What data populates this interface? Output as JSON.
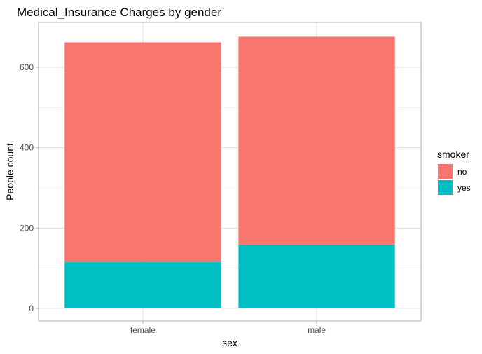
{
  "chart_data": {
    "type": "bar",
    "stacked": true,
    "title": "Medical_Insurance Charges by gender",
    "xlabel": "sex",
    "ylabel": "People count",
    "categories": [
      "female",
      "male"
    ],
    "series": [
      {
        "name": "no",
        "color": "#F8766D",
        "values": [
          547,
          517
        ]
      },
      {
        "name": "yes",
        "color": "#00BFC4",
        "values": [
          115,
          159
        ]
      }
    ],
    "ylim": [
      0,
      710
    ],
    "yticks": [
      0,
      200,
      400,
      600
    ],
    "grid": true,
    "legend": {
      "title": "smoker",
      "position": "right"
    }
  }
}
